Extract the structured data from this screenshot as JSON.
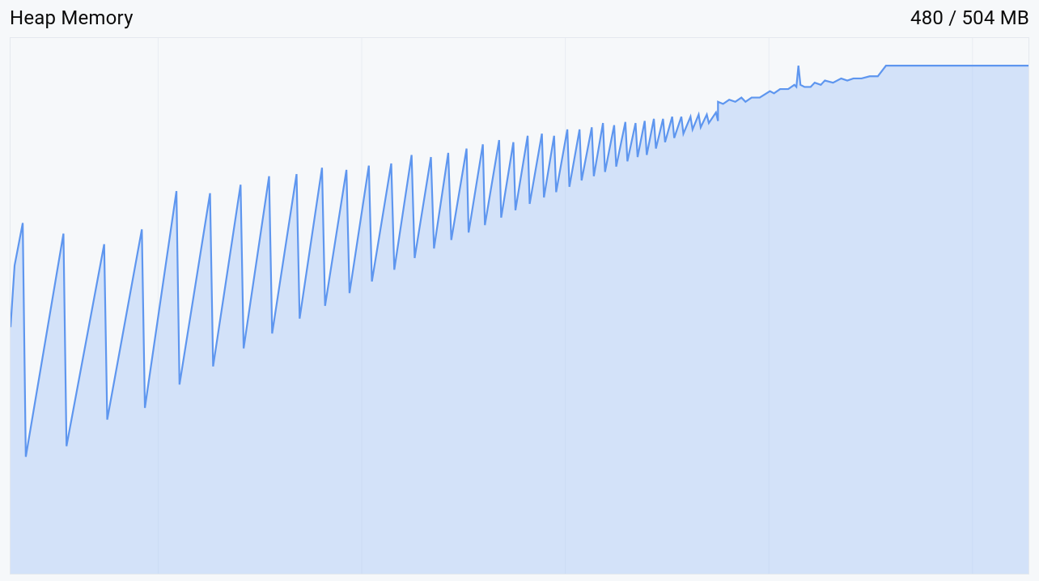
{
  "header": {
    "title": "Heap Memory",
    "usage": "480 / 504 MB"
  },
  "chart": {
    "type": "area",
    "background_color": "#f6f8fa",
    "border_color": "#e4e8ee",
    "grid_color": "#e8ecf2",
    "fill_color": "#a2c5f8",
    "stroke_color": "#5e96ef",
    "stroke_width": 2.2,
    "fill_opacity": 0.65,
    "xlim": [
      0,
      1000
    ],
    "ylim": [
      0,
      504
    ],
    "x_gridlines": [
      145,
      345,
      545,
      745,
      945
    ],
    "series": [
      [
        0,
        232
      ],
      [
        4,
        290
      ],
      [
        12,
        330
      ],
      [
        15,
        110
      ],
      [
        52,
        320
      ],
      [
        55,
        120
      ],
      [
        92,
        310
      ],
      [
        95,
        145
      ],
      [
        129,
        324
      ],
      [
        132,
        156
      ],
      [
        163,
        360
      ],
      [
        166,
        178
      ],
      [
        196,
        358
      ],
      [
        199,
        195
      ],
      [
        226,
        366
      ],
      [
        229,
        212
      ],
      [
        254,
        374
      ],
      [
        257,
        226
      ],
      [
        281,
        376
      ],
      [
        284,
        240
      ],
      [
        306,
        382
      ],
      [
        309,
        252
      ],
      [
        330,
        380
      ],
      [
        333,
        264
      ],
      [
        352,
        384
      ],
      [
        355,
        275
      ],
      [
        374,
        386
      ],
      [
        377,
        286
      ],
      [
        394,
        394
      ],
      [
        397,
        297
      ],
      [
        413,
        392
      ],
      [
        416,
        306
      ],
      [
        430,
        396
      ],
      [
        433,
        314
      ],
      [
        448,
        400
      ],
      [
        450,
        321
      ],
      [
        464,
        404
      ],
      [
        466,
        328
      ],
      [
        480,
        408
      ],
      [
        482,
        335
      ],
      [
        494,
        406
      ],
      [
        496,
        342
      ],
      [
        508,
        412
      ],
      [
        510,
        348
      ],
      [
        522,
        414
      ],
      [
        524,
        354
      ],
      [
        534,
        412
      ],
      [
        536,
        359
      ],
      [
        547,
        418
      ],
      [
        549,
        364
      ],
      [
        559,
        418
      ],
      [
        561,
        370
      ],
      [
        571,
        420
      ],
      [
        573,
        374
      ],
      [
        582,
        424
      ],
      [
        584,
        378
      ],
      [
        593,
        422
      ],
      [
        595,
        383
      ],
      [
        604,
        425
      ],
      [
        606,
        388
      ],
      [
        614,
        424
      ],
      [
        616,
        392
      ],
      [
        623,
        426
      ],
      [
        625,
        394
      ],
      [
        632,
        428
      ],
      [
        634,
        400
      ],
      [
        641,
        428
      ],
      [
        643,
        406
      ],
      [
        650,
        430
      ],
      [
        652,
        410
      ],
      [
        659,
        430
      ],
      [
        661,
        414
      ],
      [
        668,
        430
      ],
      [
        670,
        418
      ],
      [
        676,
        432
      ],
      [
        678,
        420
      ],
      [
        684,
        432
      ],
      [
        686,
        424
      ],
      [
        693,
        434
      ],
      [
        695,
        426
      ],
      [
        695,
        444
      ],
      [
        700,
        442
      ],
      [
        706,
        446
      ],
      [
        712,
        444
      ],
      [
        718,
        448
      ],
      [
        722,
        444
      ],
      [
        728,
        448
      ],
      [
        736,
        448
      ],
      [
        746,
        454
      ],
      [
        750,
        452
      ],
      [
        756,
        456
      ],
      [
        764,
        456
      ],
      [
        770,
        460
      ],
      [
        772,
        458
      ],
      [
        774,
        478
      ],
      [
        776,
        460
      ],
      [
        780,
        458
      ],
      [
        786,
        458
      ],
      [
        790,
        462
      ],
      [
        796,
        460
      ],
      [
        800,
        464
      ],
      [
        808,
        462
      ],
      [
        816,
        466
      ],
      [
        822,
        464
      ],
      [
        828,
        466
      ],
      [
        836,
        466
      ],
      [
        844,
        468
      ],
      [
        852,
        468
      ],
      [
        860,
        478
      ],
      [
        868,
        478
      ],
      [
        1000,
        478
      ]
    ]
  }
}
